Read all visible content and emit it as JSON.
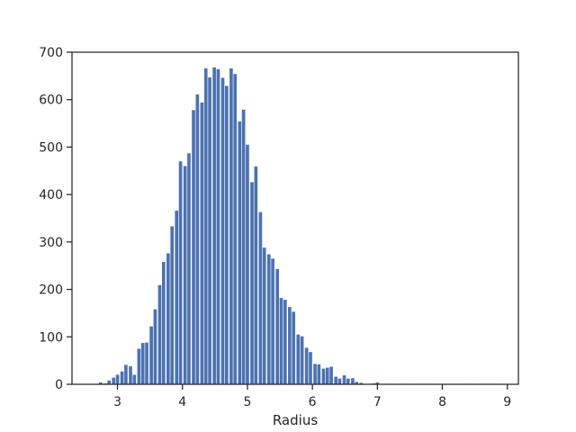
{
  "chart_data": {
    "type": "bar",
    "title": "",
    "xlabel": "Radius",
    "ylabel": "",
    "xlim": [
      2.3,
      9.17
    ],
    "ylim": [
      0,
      700
    ],
    "bin_width": 0.0645,
    "xticks": [
      3,
      4,
      5,
      6,
      7,
      8,
      9
    ],
    "yticks": [
      0,
      100,
      200,
      300,
      400,
      500,
      600,
      700
    ],
    "grid": false,
    "bar_color": "#4c72b0",
    "categories": [
      2.67,
      2.74,
      2.81,
      2.87,
      2.94,
      3.0,
      3.07,
      3.13,
      3.2,
      3.26,
      3.33,
      3.39,
      3.45,
      3.52,
      3.58,
      3.65,
      3.71,
      3.78,
      3.84,
      3.91,
      3.97,
      4.04,
      4.1,
      4.17,
      4.23,
      4.3,
      4.36,
      4.42,
      4.49,
      4.55,
      4.62,
      4.68,
      4.75,
      4.81,
      4.88,
      4.94,
      5.0,
      5.07,
      5.13,
      5.2,
      5.26,
      5.33,
      5.39,
      5.46,
      5.52,
      5.58,
      5.65,
      5.71,
      5.78,
      5.84,
      5.91,
      5.97,
      6.04,
      6.1,
      6.17,
      6.23,
      6.29,
      6.36,
      6.42,
      6.49,
      6.55,
      6.62,
      6.68,
      6.75,
      6.81,
      6.87,
      6.94,
      7.0,
      7.07,
      7.13,
      7.2,
      7.26,
      7.33,
      7.39,
      7.45,
      7.52,
      7.58,
      7.65,
      7.71,
      7.78,
      7.84,
      7.91,
      7.97,
      8.04,
      8.1,
      8.17,
      8.23,
      8.3,
      8.36,
      8.42,
      8.49,
      8.55,
      8.62,
      8.68,
      8.75,
      8.81,
      8.87
    ],
    "values": [
      1,
      4,
      2,
      8,
      14,
      20,
      27,
      41,
      38,
      20,
      75,
      87,
      88,
      122,
      158,
      209,
      258,
      276,
      333,
      366,
      470,
      460,
      487,
      578,
      611,
      594,
      666,
      647,
      668,
      664,
      646,
      629,
      666,
      654,
      554,
      579,
      505,
      426,
      459,
      363,
      288,
      274,
      265,
      243,
      182,
      178,
      163,
      153,
      105,
      101,
      77,
      68,
      43,
      42,
      33,
      35,
      37,
      16,
      12,
      19,
      12,
      13,
      5,
      3,
      1,
      1,
      2,
      4,
      1,
      1,
      1,
      1,
      1,
      1,
      1,
      1,
      1,
      1,
      1,
      1,
      1,
      1,
      1,
      1,
      1,
      1,
      1,
      1,
      1,
      1,
      1,
      1,
      1,
      1,
      1,
      1,
      1
    ]
  }
}
